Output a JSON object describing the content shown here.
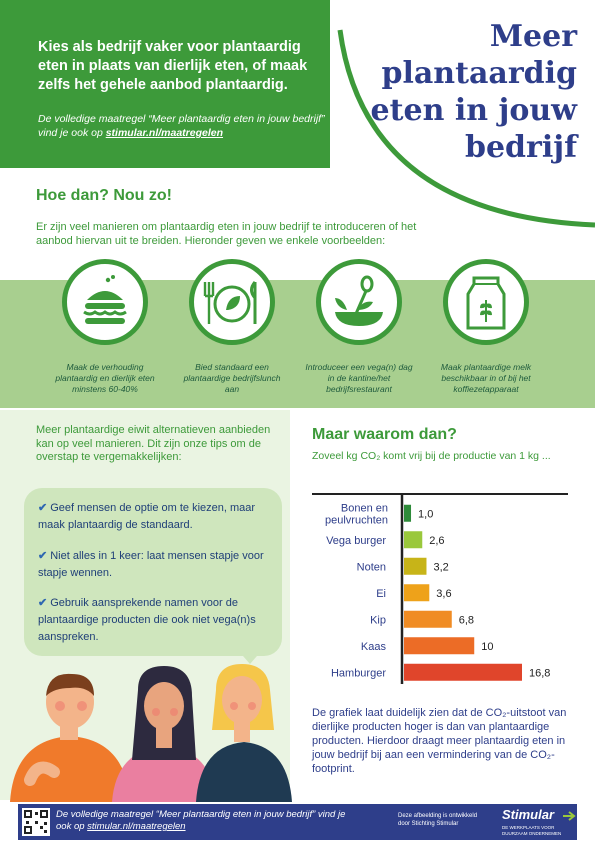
{
  "header": {
    "intro": "Kies als bedrijf vaker voor plantaardig eten in plaats van dierlijk eten, of maak zelfs het gehele aanbod plantaardig.",
    "note_prefix": "De volledige maatregel “Meer plantaardig eten in jouw bedrijf” vind je ook op ",
    "note_link": "stimular.nl/maatregelen",
    "title_lines": [
      "Meer",
      "plantaardig",
      "eten in jouw",
      "bedrijf"
    ]
  },
  "how": {
    "title": "Hoe dan? Nou zo!",
    "text": "Er zijn veel manieren om plantaardig eten in jouw bedrijf te introduceren of het aanbod hiervan uit te breiden. Hieronder geven we enkele voorbeelden:",
    "items": [
      {
        "icon": "burger-icon",
        "caption": "Maak de verhouding plantaardig en dierlijk eten minstens 60-40%"
      },
      {
        "icon": "plate-cutlery-icon",
        "caption": "Bied standaard een plantaardige bedrijfslunch aan"
      },
      {
        "icon": "bowl-spoon-icon",
        "caption": "Introduceer een vega(n) dag in de kantine/het bedrijfsrestaurant"
      },
      {
        "icon": "milk-carton-icon",
        "caption": "Maak plantaardige melk beschikbaar in of bij het koffiezetapparaat"
      }
    ]
  },
  "left": {
    "intro": "Meer plantaardige eiwit alternatieven aanbieden kan op veel manieren. Dit zijn onze tips om de overstap te vergemakkelijken:",
    "tips": [
      "Geef mensen de optie om te kiezen, maar maak plantaardig de standaard.",
      "Niet alles in 1 keer: laat mensen stapje voor stapje wennen.",
      "Gebruik aansprekende namen voor de plantaardige producten die ook niet vega(n)s aanspreken."
    ]
  },
  "why": {
    "title": "Maar waarom dan?",
    "subtitle": "Zoveel kg CO₂ komt vrij bij de productie van 1 kg ...",
    "conclusion": "De grafiek laat duidelijk zien dat de CO₂-uitstoot van dierlijke producten hoger is dan van plantaardige producten. Hierdoor draagt meer plantaardig eten in jouw bedrijf bij aan een vermindering van de CO₂-footprint."
  },
  "chart_data": {
    "type": "bar",
    "orientation": "horizontal",
    "categories": [
      "Bonen en peulvruchten",
      "Vega burger",
      "Noten",
      "Ei",
      "Kip",
      "Kaas",
      "Hamburger"
    ],
    "values": [
      1.0,
      2.6,
      3.2,
      3.6,
      6.8,
      10,
      16.8
    ],
    "value_labels": [
      "1,0",
      "2,6",
      "3,2",
      "3,6",
      "6,8",
      "10",
      "16,8"
    ],
    "colors": [
      "#2e8b3a",
      "#9ac83c",
      "#c7b418",
      "#eea21a",
      "#f08c24",
      "#ec6c26",
      "#e0452b"
    ],
    "xlim": [
      0,
      16.8
    ]
  },
  "footer": {
    "note_prefix": "De volledige maatregel “Meer plantaardig eten in jouw bedrijf” vind je ook op ",
    "note_link": "stimular.nl/maatregelen",
    "credit": "Deze afbeelding is ontwikkeld door Stichting Stimular",
    "logo": "Stimular",
    "logo_sub": "DE WERKPLAATS VOOR DUURZAAM ONDERNEMEN"
  }
}
